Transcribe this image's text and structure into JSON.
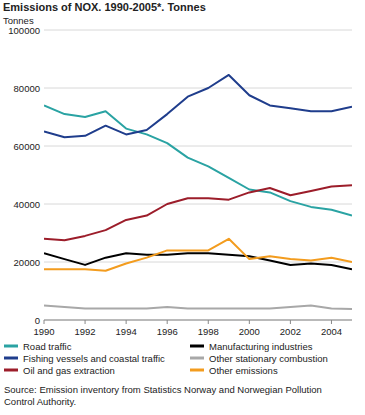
{
  "chart_data": {
    "type": "line",
    "title": "Emissions of NOX. 1990-2005*. Tonnes",
    "y_label": "Tonnes",
    "source": "Source: Emission inventory from Statistics Norway and Norwegian Pollution Control Authority.",
    "x": [
      1990,
      1991,
      1992,
      1993,
      1994,
      1995,
      1996,
      1997,
      1998,
      1999,
      2000,
      2001,
      2002,
      2003,
      2004,
      2005
    ],
    "xlim": [
      1990,
      2005
    ],
    "xticks": [
      1990,
      1992,
      1994,
      1996,
      1998,
      2000,
      2002,
      2004
    ],
    "ylim": [
      0,
      100000
    ],
    "yticks": [
      0,
      20000,
      40000,
      60000,
      80000,
      100000
    ],
    "grid": true,
    "legend": "bottom",
    "series": [
      {
        "name": "Road traffic",
        "color": "#2aa3a3",
        "values": [
          74000,
          71000,
          70000,
          72000,
          66000,
          64000,
          61000,
          56000,
          53000,
          49000,
          45000,
          44000,
          41000,
          39000,
          38000,
          36000
        ]
      },
      {
        "name": "Manufacturing industries",
        "color": "#000000",
        "values": [
          23000,
          21000,
          19000,
          21500,
          23000,
          22500,
          22500,
          23000,
          23000,
          22500,
          22000,
          20500,
          19000,
          19500,
          19000,
          17500
        ]
      },
      {
        "name": "Fishing vessels and coastal traffic",
        "color": "#1f3d8c",
        "values": [
          65000,
          63000,
          63500,
          67000,
          64000,
          65500,
          71000,
          77000,
          80000,
          84500,
          77500,
          74000,
          73000,
          72000,
          72000,
          73500
        ]
      },
      {
        "name": "Other stationary combustion",
        "color": "#a8a8a8",
        "values": [
          5000,
          4500,
          4000,
          4000,
          4000,
          4000,
          4500,
          4000,
          4000,
          4000,
          4000,
          4000,
          4500,
          5000,
          4000,
          3800
        ]
      },
      {
        "name": "Oil and gas extraction",
        "color": "#9c1d2a",
        "values": [
          28000,
          27500,
          29000,
          31000,
          34500,
          36000,
          40000,
          42000,
          42000,
          41500,
          44000,
          45500,
          43000,
          44500,
          46000,
          46500
        ]
      },
      {
        "name": "Other emissions",
        "color": "#f39c1e",
        "values": [
          17500,
          17500,
          17500,
          17000,
          19500,
          21500,
          24000,
          24000,
          24000,
          28000,
          21000,
          22000,
          21000,
          20500,
          21500,
          20000
        ]
      }
    ]
  }
}
